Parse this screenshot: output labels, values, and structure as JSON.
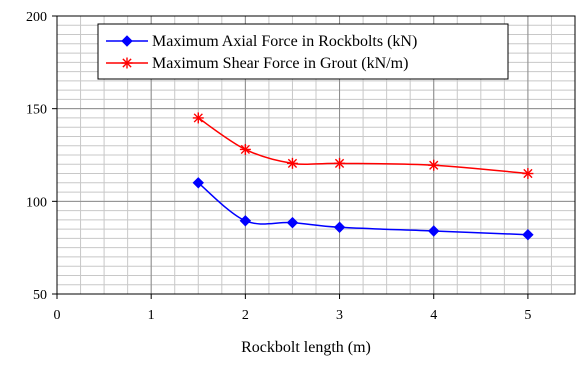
{
  "chart_data": {
    "type": "line",
    "title": "",
    "xlabel": "Rockbolt  length (m)",
    "ylabel": "",
    "xlim": [
      0,
      5.5
    ],
    "ylim": [
      50,
      200
    ],
    "xticks": [
      0,
      1,
      2,
      3,
      4,
      5
    ],
    "yticks": [
      50,
      100,
      150,
      200
    ],
    "x_minor_step": 0.25,
    "y_minor_step": 5,
    "grid": true,
    "legend_position": "top-center",
    "series": [
      {
        "name": "Maximum Axial Force in Rockbolts (kN)",
        "color": "#0000ff",
        "marker": "diamond",
        "x": [
          1.5,
          2.0,
          2.5,
          3.0,
          4.0,
          5.0
        ],
        "y": [
          110,
          89.5,
          88.5,
          86,
          84,
          82
        ]
      },
      {
        "name": "Maximum Shear Force in Grout (kN/m)",
        "color": "#ff0000",
        "marker": "asterisk",
        "x": [
          1.5,
          2.0,
          2.5,
          3.0,
          4.0,
          5.0
        ],
        "y": [
          145,
          128,
          120.5,
          120.5,
          119.5,
          115
        ]
      }
    ]
  }
}
